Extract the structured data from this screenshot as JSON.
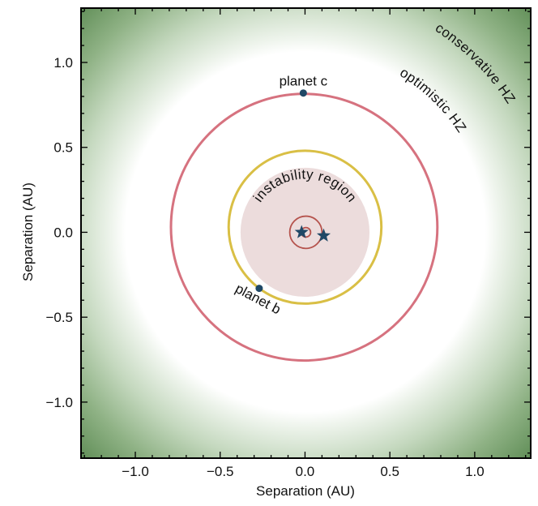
{
  "chart_data": {
    "type": "diagram-scatter",
    "xlabel": "Separation (AU)",
    "ylabel": "Separation (AU)",
    "xlim": [
      -1.32,
      1.33
    ],
    "ylim": [
      -1.33,
      1.32
    ],
    "xticks": [
      -1.0,
      -0.5,
      0.0,
      0.5,
      1.0
    ],
    "yticks": [
      -1.0,
      -0.5,
      0.0,
      0.5,
      1.0
    ],
    "xtick_labels": [
      "−1.0",
      "−0.5",
      "0.0",
      "0.5",
      "1.0"
    ],
    "ytick_labels": [
      "−1.0",
      "−0.5",
      "0.0",
      "0.5",
      "1.0"
    ],
    "minor_tick_step": 0.1,
    "grid": false,
    "habitable_zone": {
      "optimistic_inner_radius": 1.06,
      "conservative_inner_radius": 1.37,
      "optimistic_label": "optimistic HZ",
      "conservative_label": "conservative HZ",
      "color": "#5b8a52"
    },
    "instability_region": {
      "radius": 0.38,
      "label": "instability region",
      "color": "#ecdcdc"
    },
    "orbits": [
      {
        "name": "planet c orbit",
        "center": [
          -0.005,
          0.03
        ],
        "radius": 0.785,
        "color": "#d6727f"
      },
      {
        "name": "planet b orbit",
        "center": [
          0.0,
          0.03
        ],
        "radius": 0.45,
        "color": "#d9bf45"
      },
      {
        "name": "binary orbit",
        "center": [
          0.005,
          0.0
        ],
        "radius": 0.095,
        "color": "#b5534d"
      },
      {
        "name": "binary inner orbit",
        "center": [
          0.005,
          0.0
        ],
        "radius": 0.028,
        "color": "#b5534d"
      }
    ],
    "stars": [
      [
        -0.02,
        0.0
      ],
      [
        0.11,
        -0.02
      ]
    ],
    "planets": [
      {
        "label": "planet c",
        "x": -0.01,
        "y": 0.82
      },
      {
        "label": "planet b",
        "x": -0.27,
        "y": -0.33
      }
    ],
    "marker_color": "#1f4866"
  }
}
